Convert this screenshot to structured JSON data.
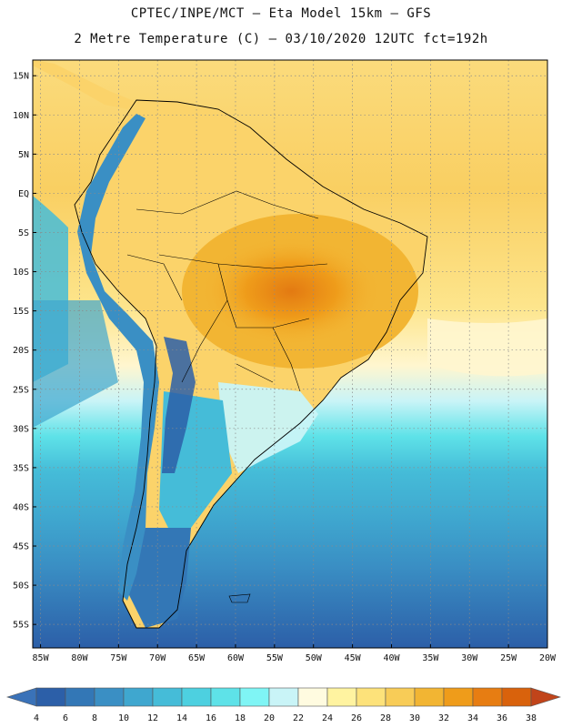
{
  "header": {
    "line1": "CPTEC/INPE/MCT –  Eta Model 15km – GFS",
    "line2": "2 Metre Temperature (C) – 03/10/2020 12UTC fct=192h"
  },
  "map": {
    "lat_labels": [
      "15N",
      "10N",
      "5N",
      "EQ",
      "5S",
      "10S",
      "15S",
      "20S",
      "25S",
      "30S",
      "35S",
      "40S",
      "45S",
      "50S",
      "55S"
    ],
    "lon_labels": [
      "85W",
      "80W",
      "75W",
      "70W",
      "65W",
      "60W",
      "55W",
      "50W",
      "45W",
      "40W",
      "35W",
      "30W",
      "25W",
      "20W"
    ],
    "lat_range": [
      17,
      -58
    ],
    "lon_range": [
      -86,
      -20
    ],
    "grid": true
  },
  "colorbar": {
    "tick_labels": [
      "4",
      "6",
      "8",
      "10",
      "12",
      "14",
      "16",
      "18",
      "20",
      "22",
      "24",
      "26",
      "28",
      "30",
      "32",
      "34",
      "36",
      "38"
    ],
    "low_color": "#3a72b8",
    "high_color": "#c1441a",
    "colors": [
      "#2c5fa8",
      "#3377b6",
      "#3a8fc4",
      "#3fa7cf",
      "#45bcd8",
      "#4dd0e0",
      "#5ee2e8",
      "#7ff5f5",
      "#c9f4f7",
      "#fffbe0",
      "#fff3a0",
      "#fde27a",
      "#f8cc57",
      "#f2b533",
      "#ef9c1a",
      "#e77d12",
      "#d9620c",
      "#c1441a"
    ]
  }
}
